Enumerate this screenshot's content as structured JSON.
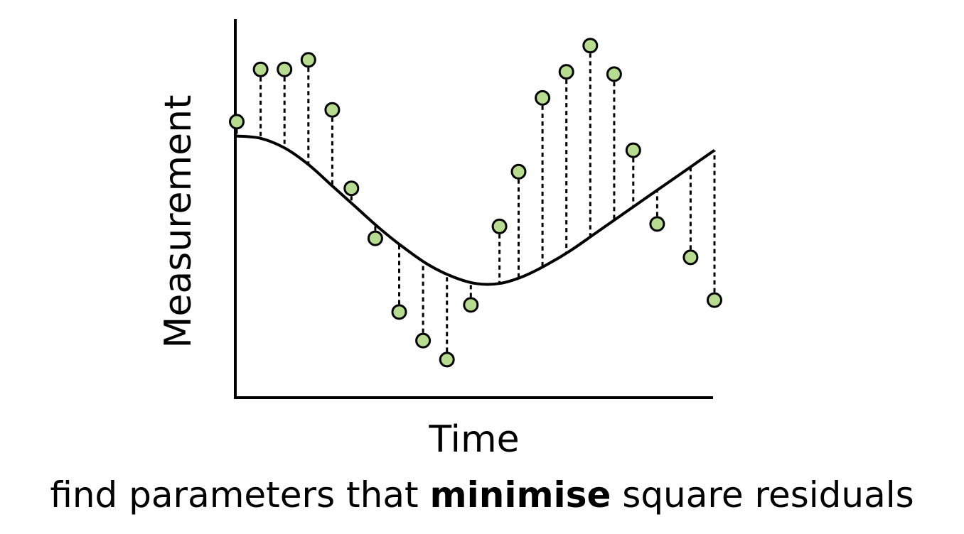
{
  "diagram": {
    "y_axis_label": "Measurement",
    "x_axis_label": "Time",
    "colors": {
      "point_fill": "#b7dc90",
      "point_stroke": "#000000",
      "curve": "#000000",
      "residual_line": "#000000"
    }
  },
  "caption": {
    "before": "find parameters that ",
    "emphasis": "minimise",
    "after": " square residuals"
  },
  "chart_data": {
    "type": "scatter",
    "title": "",
    "xlabel": "Time",
    "ylabel": "Measurement",
    "grid": false,
    "legend": "none",
    "note_values": "x and y are in arbitrary units; axes show no ticks",
    "curve": {
      "x": [
        0,
        5,
        10,
        15,
        20,
        25,
        30,
        35,
        40,
        45,
        50,
        55,
        60,
        65,
        70,
        75,
        80,
        85,
        90,
        95,
        100
      ],
      "y": [
        0.5,
        0.49,
        0.45,
        0.38,
        0.29,
        0.2,
        0.11,
        0.03,
        -0.04,
        -0.09,
        -0.12,
        -0.12,
        -0.09,
        -0.04,
        0.02,
        0.09,
        0.16,
        0.23,
        0.3,
        0.37,
        0.44
      ]
    },
    "points": {
      "x": [
        0,
        5,
        10,
        15,
        20,
        24,
        29,
        34,
        39,
        44,
        49,
        55,
        59,
        64,
        69,
        74,
        79,
        83,
        88,
        95,
        100
      ],
      "y": [
        0.56,
        0.78,
        0.78,
        0.82,
        0.61,
        0.28,
        0.07,
        -0.24,
        -0.36,
        -0.44,
        -0.21,
        0.12,
        0.35,
        0.66,
        0.77,
        0.88,
        0.76,
        0.44,
        0.13,
        -0.01,
        -0.19
      ]
    }
  }
}
